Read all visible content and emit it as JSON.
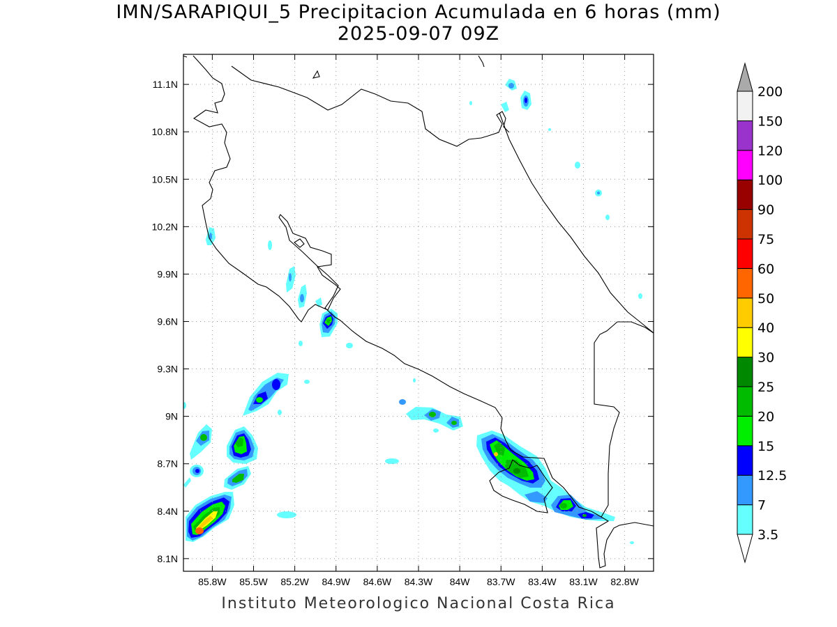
{
  "title": {
    "line1": "IMN/SARAPIQUI_5 Precipitacion Acumulada en 6 horas (mm)",
    "line2": "2025-09-07 09Z"
  },
  "credit": "Instituto Meteorologico Nacional Costa Rica",
  "map": {
    "lon_range": [
      -86.01,
      -82.59
    ],
    "lat_range": [
      8.02,
      11.29
    ],
    "lon_ticks": [
      {
        "value": -85.8,
        "label": "85.8W"
      },
      {
        "value": -85.5,
        "label": "85.5W"
      },
      {
        "value": -85.2,
        "label": "85.2W"
      },
      {
        "value": -84.9,
        "label": "84.9W"
      },
      {
        "value": -84.6,
        "label": "84.6W"
      },
      {
        "value": -84.3,
        "label": "84.3W"
      },
      {
        "value": -84.0,
        "label": "84W"
      },
      {
        "value": -83.7,
        "label": "83.7W"
      },
      {
        "value": -83.4,
        "label": "83.4W"
      },
      {
        "value": -83.1,
        "label": "83.1W"
      },
      {
        "value": -82.8,
        "label": "82.8W"
      }
    ],
    "lat_ticks": [
      {
        "value": 8.1,
        "label": "8.1N"
      },
      {
        "value": 8.4,
        "label": "8.4N"
      },
      {
        "value": 8.7,
        "label": "8.7N"
      },
      {
        "value": 9.0,
        "label": "9N"
      },
      {
        "value": 9.3,
        "label": "9.3N"
      },
      {
        "value": 9.6,
        "label": "9.6N"
      },
      {
        "value": 9.9,
        "label": "9.9N"
      },
      {
        "value": 10.2,
        "label": "10.2N"
      },
      {
        "value": 10.5,
        "label": "10.5N"
      },
      {
        "value": 10.8,
        "label": "10.8N"
      },
      {
        "value": 11.1,
        "label": "11.1N"
      }
    ],
    "grid": "dotted"
  },
  "legend": {
    "levels": [
      "3.5",
      "7",
      "12.5",
      "15",
      "20",
      "25",
      "30",
      "40",
      "50",
      "60",
      "75",
      "90",
      "100",
      "120",
      "150",
      "200"
    ],
    "colors": [
      "#ffffff",
      "#66ffff",
      "#3399ff",
      "#0000ff",
      "#00ee00",
      "#00bb00",
      "#008800",
      "#ffff00",
      "#ffcc00",
      "#ff6600",
      "#ff0000",
      "#cc3300",
      "#990000",
      "#ff00ff",
      "#9933cc",
      "#f2f2f2",
      "#aaaaaa"
    ]
  },
  "chart_data": {
    "type": "heatmap",
    "variable": "Precipitacion Acumulada en 6 horas (mm)",
    "cells": [
      {
        "lon": -85.75,
        "lat": 8.28,
        "mm": 30
      },
      {
        "lon": -85.7,
        "lat": 8.35,
        "mm": 22
      },
      {
        "lon": -85.6,
        "lat": 8.4,
        "mm": 12.5
      },
      {
        "lon": -85.55,
        "lat": 8.6,
        "mm": 22
      },
      {
        "lon": -85.56,
        "lat": 8.79,
        "mm": 22
      },
      {
        "lon": -85.58,
        "lat": 8.86,
        "mm": 20
      },
      {
        "lon": -85.8,
        "lat": 8.85,
        "mm": 15
      },
      {
        "lon": -85.85,
        "lat": 8.65,
        "mm": 12.5
      },
      {
        "lon": -85.45,
        "lat": 9.09,
        "mm": 20
      },
      {
        "lon": -85.33,
        "lat": 9.18,
        "mm": 15
      },
      {
        "lon": -84.9,
        "lat": 9.62,
        "mm": 25
      },
      {
        "lon": -85.05,
        "lat": 9.77,
        "mm": 7
      },
      {
        "lon": -85.1,
        "lat": 9.87,
        "mm": 7
      },
      {
        "lon": -85.72,
        "lat": 10.16,
        "mm": 7
      },
      {
        "lon": -84.12,
        "lat": 9.0,
        "mm": 20
      },
      {
        "lon": -83.99,
        "lat": 8.93,
        "mm": 20
      },
      {
        "lon": -84.3,
        "lat": 9.08,
        "mm": 7
      },
      {
        "lon": -83.67,
        "lat": 8.78,
        "mm": 25
      },
      {
        "lon": -83.52,
        "lat": 8.65,
        "mm": 25
      },
      {
        "lon": -83.42,
        "lat": 8.6,
        "mm": 12.5
      },
      {
        "lon": -83.21,
        "lat": 8.42,
        "mm": 20
      },
      {
        "lon": -83.02,
        "lat": 8.37,
        "mm": 15
      },
      {
        "lon": -83.56,
        "lat": 11.1,
        "mm": 12.5
      },
      {
        "lon": -83.45,
        "lat": 11.02,
        "mm": 12.5
      },
      {
        "lon": -83.57,
        "lat": 10.98,
        "mm": 3.5
      },
      {
        "lon": -83.27,
        "lat": 10.6,
        "mm": 3.5
      },
      {
        "lon": -83.1,
        "lat": 10.43,
        "mm": 7
      },
      {
        "lon": -83.05,
        "lat": 10.27,
        "mm": 3.5
      },
      {
        "lon": -85.2,
        "lat": 8.36,
        "mm": 3.5
      },
      {
        "lon": -84.17,
        "lat": 8.71,
        "mm": 3.5
      },
      {
        "lon": -84.8,
        "lat": 9.43,
        "mm": 3.5
      },
      {
        "lon": -85.0,
        "lat": 9.74,
        "mm": 3.5
      },
      {
        "lon": -84.95,
        "lat": 9.45,
        "mm": 3.5
      },
      {
        "lon": -82.7,
        "lat": 9.76,
        "mm": 3.5
      },
      {
        "lon": -82.75,
        "lat": 8.18,
        "mm": 3.5
      }
    ]
  }
}
